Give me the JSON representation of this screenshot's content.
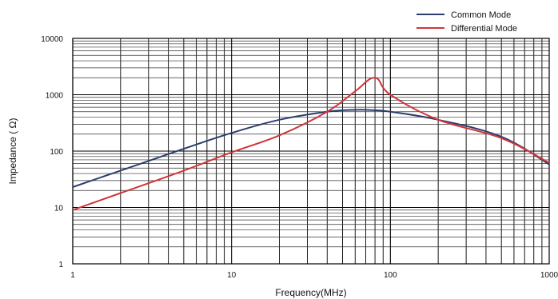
{
  "chart_data": {
    "type": "line",
    "xlabel": "Frequency(MHz)",
    "ylabel": "Impedance ( Ω)",
    "x_scale": "log",
    "y_scale": "log",
    "xlim": [
      1,
      1000
    ],
    "ylim": [
      1,
      10000
    ],
    "x_tick_labels": [
      "1",
      "10",
      "100",
      "1000"
    ],
    "y_tick_labels": [
      "1",
      "10",
      "100",
      "1000",
      "10000"
    ],
    "grid": true,
    "legend_position": "top-right",
    "series": [
      {
        "name": "Common Mode",
        "color": "#2c3e6e",
        "x": [
          1,
          2,
          5,
          10,
          20,
          40,
          60,
          80,
          100,
          200,
          500,
          1000
        ],
        "y": [
          23,
          45,
          110,
          210,
          360,
          500,
          540,
          530,
          500,
          360,
          180,
          58
        ]
      },
      {
        "name": "Differential Mode",
        "color": "#d0363a",
        "x": [
          1,
          2,
          5,
          10,
          20,
          40,
          60,
          80,
          100,
          200,
          500,
          1000
        ],
        "y": [
          9,
          18,
          45,
          95,
          190,
          500,
          1150,
          2000,
          1000,
          360,
          170,
          62
        ]
      }
    ]
  }
}
